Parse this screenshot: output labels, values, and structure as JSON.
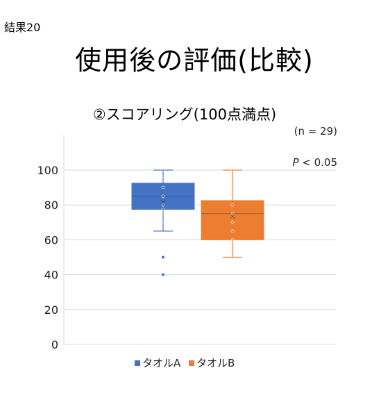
{
  "corner_label": "結果20",
  "main_title": "使用後の評価(比較)",
  "chart_data": {
    "type": "box",
    "title": "②スコアリング(100点満点)",
    "annotations": [
      "(n = 29)",
      "P < 0.05"
    ],
    "annotation_p_symbol": "P",
    "annotation_p_rest": " < 0.05",
    "ylim": [
      0,
      120
    ],
    "yticks": [
      0,
      20,
      40,
      60,
      80,
      100
    ],
    "grid": true,
    "legend": "bottom",
    "series": [
      {
        "name": "タオルA",
        "color": "#4472C4",
        "q1": 77.5,
        "median": 85,
        "q3": 92.5,
        "mean": 81.5,
        "whisker_low": 65,
        "whisker_high": 100,
        "points": [
          100,
          95,
          90,
          85,
          80,
          77.5,
          75,
          70
        ],
        "outliers": [
          50,
          40
        ]
      },
      {
        "name": "タオルB",
        "color": "#ED7D31",
        "q1": 60,
        "median": 75,
        "q3": 82.5,
        "mean": 73.5,
        "whisker_low": 50,
        "whisker_high": 100,
        "points": [
          100,
          90,
          85,
          80,
          75,
          70,
          65,
          60
        ],
        "outliers": []
      }
    ]
  }
}
